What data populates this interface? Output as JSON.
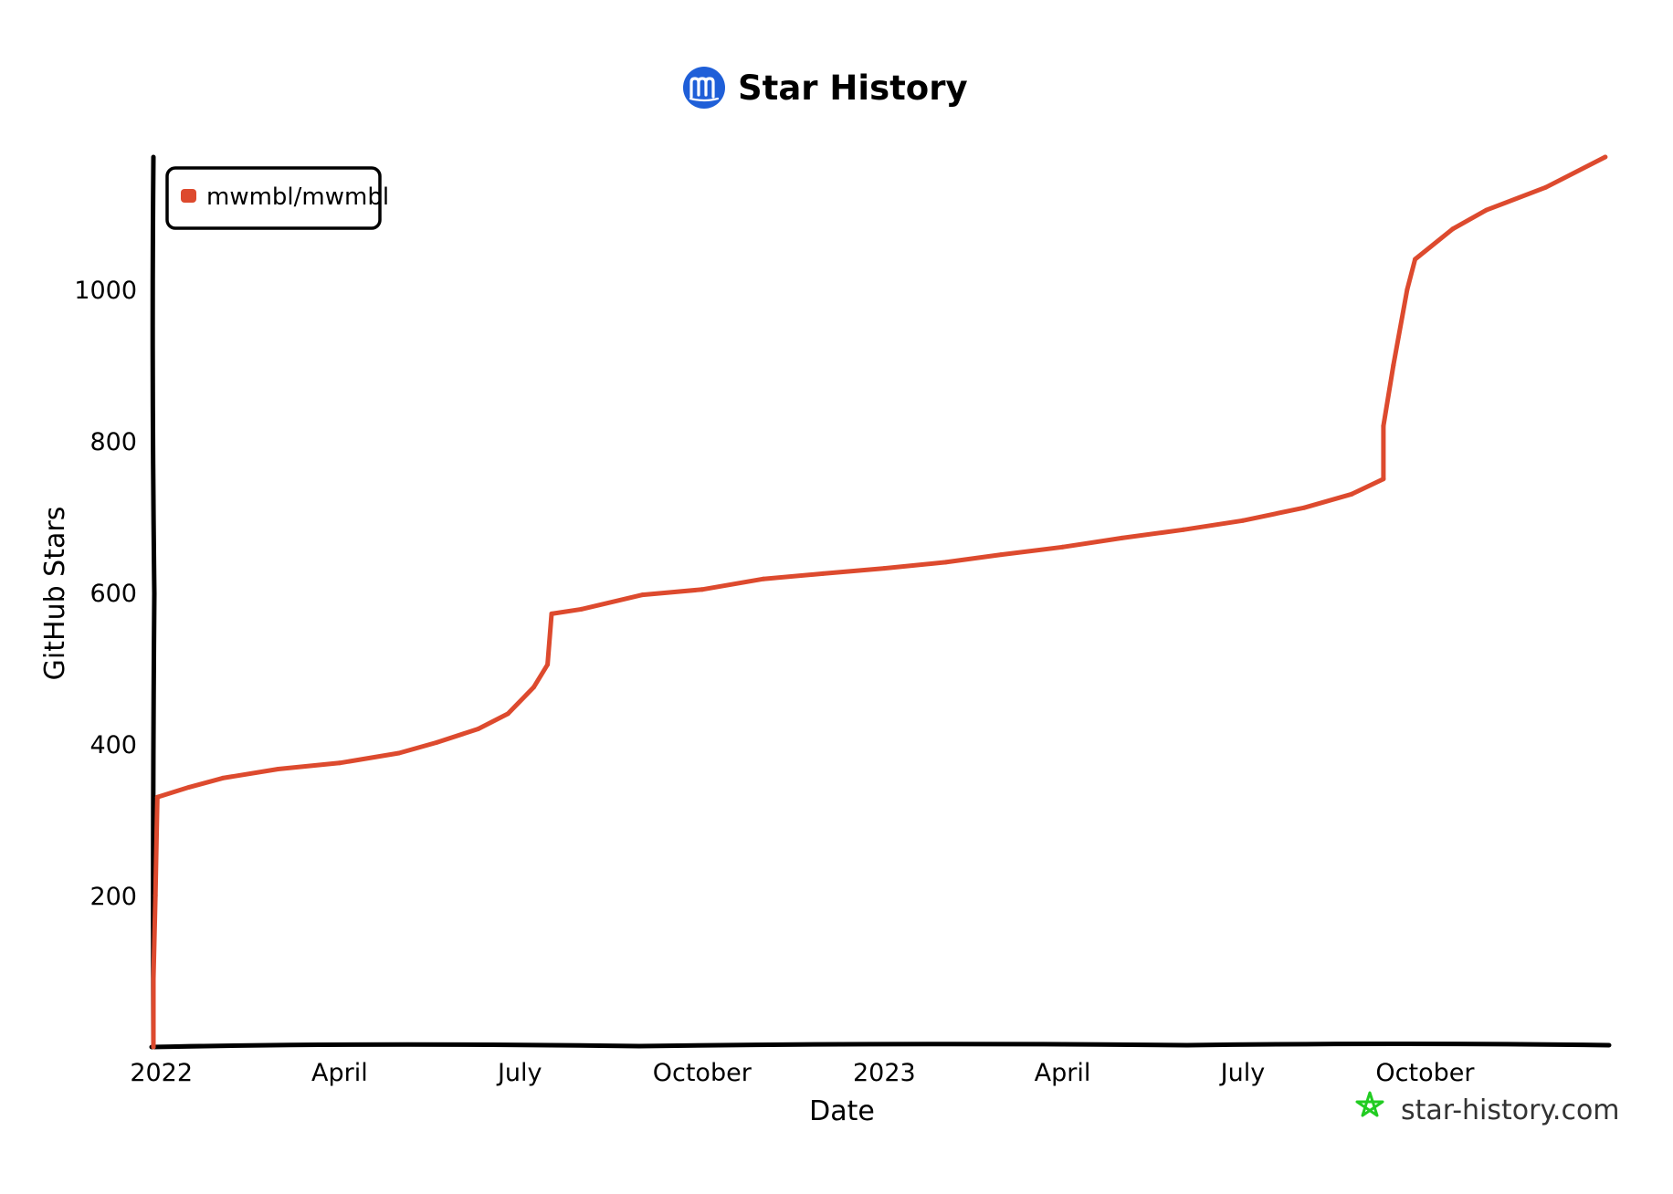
{
  "header": {
    "title": "Star History",
    "logo_icon": "star-history-logo-icon",
    "logo_color": "#1f5fd8"
  },
  "watermark": {
    "text": "star-history.com",
    "icon": "star-icon",
    "icon_color": "#22cc22"
  },
  "chart_data": {
    "type": "line",
    "title": "Star History",
    "xlabel": "Date",
    "ylabel": "GitHub Stars",
    "x_axis_type": "date",
    "x_ticks": [
      {
        "date": "2022-01-01",
        "label": "2022"
      },
      {
        "date": "2022-04-01",
        "label": "April"
      },
      {
        "date": "2022-07-01",
        "label": "July"
      },
      {
        "date": "2022-10-01",
        "label": "October"
      },
      {
        "date": "2023-01-01",
        "label": "2023"
      },
      {
        "date": "2023-04-01",
        "label": "April"
      },
      {
        "date": "2023-07-01",
        "label": "July"
      },
      {
        "date": "2023-10-01",
        "label": "October"
      }
    ],
    "y_ticks": [
      200,
      400,
      600,
      800,
      1000
    ],
    "xlim": [
      "2021-12-28",
      "2024-01-01"
    ],
    "ylim": [
      0,
      1175
    ],
    "grid": false,
    "legend_position": "top-left",
    "series": [
      {
        "name": "mwmbl/mwmbl",
        "color": "#dd4a2e",
        "points": [
          {
            "x": "2021-12-28",
            "y": 0
          },
          {
            "x": "2021-12-28",
            "y": 90
          },
          {
            "x": "2021-12-29",
            "y": 200
          },
          {
            "x": "2021-12-30",
            "y": 330
          },
          {
            "x": "2022-01-15",
            "y": 343
          },
          {
            "x": "2022-02-01",
            "y": 355
          },
          {
            "x": "2022-03-01",
            "y": 367
          },
          {
            "x": "2022-04-01",
            "y": 375
          },
          {
            "x": "2022-05-01",
            "y": 388
          },
          {
            "x": "2022-05-20",
            "y": 402
          },
          {
            "x": "2022-06-10",
            "y": 420
          },
          {
            "x": "2022-06-25",
            "y": 440
          },
          {
            "x": "2022-07-08",
            "y": 475
          },
          {
            "x": "2022-07-15",
            "y": 505
          },
          {
            "x": "2022-07-17",
            "y": 572
          },
          {
            "x": "2022-08-01",
            "y": 578
          },
          {
            "x": "2022-09-01",
            "y": 597
          },
          {
            "x": "2022-10-01",
            "y": 604
          },
          {
            "x": "2022-11-01",
            "y": 618
          },
          {
            "x": "2022-12-01",
            "y": 625
          },
          {
            "x": "2023-01-01",
            "y": 632
          },
          {
            "x": "2023-02-01",
            "y": 640
          },
          {
            "x": "2023-03-01",
            "y": 650
          },
          {
            "x": "2023-04-01",
            "y": 660
          },
          {
            "x": "2023-05-01",
            "y": 672
          },
          {
            "x": "2023-06-01",
            "y": 683
          },
          {
            "x": "2023-07-01",
            "y": 695
          },
          {
            "x": "2023-08-01",
            "y": 712
          },
          {
            "x": "2023-08-25",
            "y": 730
          },
          {
            "x": "2023-09-10",
            "y": 750
          },
          {
            "x": "2023-09-10",
            "y": 820
          },
          {
            "x": "2023-09-15",
            "y": 900
          },
          {
            "x": "2023-09-22",
            "y": 1000
          },
          {
            "x": "2023-09-26",
            "y": 1040
          },
          {
            "x": "2023-10-15",
            "y": 1080
          },
          {
            "x": "2023-11-01",
            "y": 1105
          },
          {
            "x": "2023-12-01",
            "y": 1135
          },
          {
            "x": "2023-12-31",
            "y": 1175
          }
        ]
      }
    ]
  }
}
